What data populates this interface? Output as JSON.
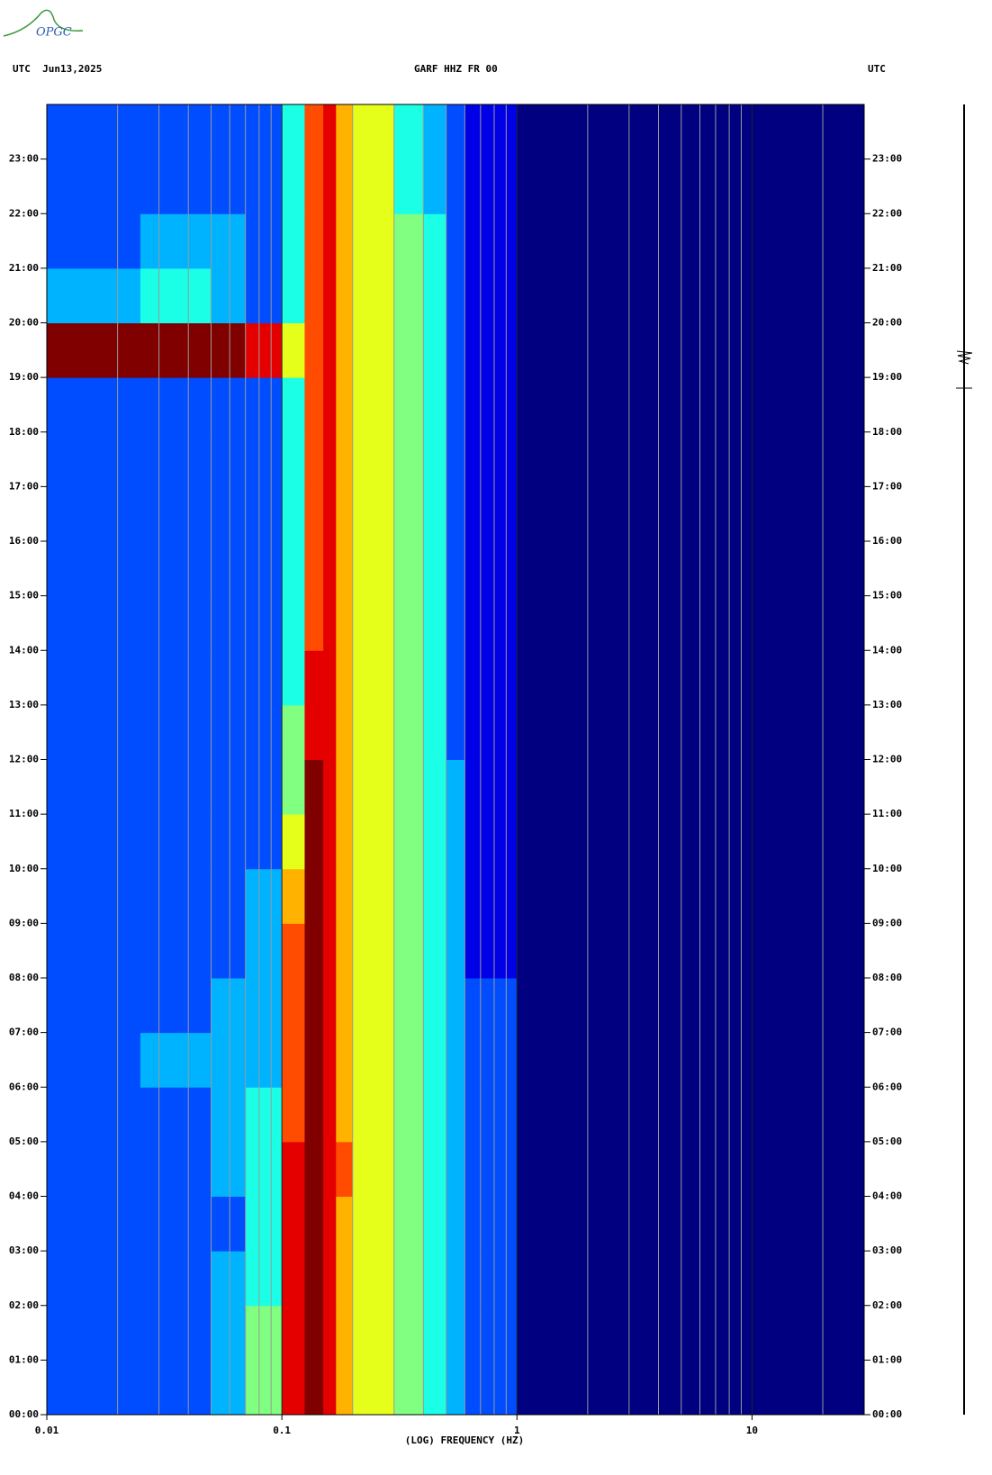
{
  "logo": "OPGC",
  "chart_data": {
    "type": "heatmap",
    "header_left": "UTC  Jun13,2025",
    "title": "GARF HHZ FR 00",
    "header_right": "UTC",
    "xlabel": "(LOG) FREQUENCY (HZ)",
    "xscale": "log",
    "xlim": [
      0.01,
      30
    ],
    "xticks": [
      0.01,
      0.1,
      1,
      10
    ],
    "xgrid": [
      0.02,
      0.03,
      0.04,
      0.05,
      0.06,
      0.07,
      0.08,
      0.09,
      0.2,
      0.3,
      0.4,
      0.5,
      0.6,
      0.7,
      0.8,
      0.9,
      2,
      3,
      4,
      5,
      6,
      7,
      8,
      9,
      20
    ],
    "ylim": [
      0,
      24
    ],
    "yticks": [
      {
        "value": 0,
        "label": "00:00"
      },
      {
        "value": 1,
        "label": "01:00"
      },
      {
        "value": 2,
        "label": "02:00"
      },
      {
        "value": 3,
        "label": "03:00"
      },
      {
        "value": 4,
        "label": "04:00"
      },
      {
        "value": 5,
        "label": "05:00"
      },
      {
        "value": 6,
        "label": "06:00"
      },
      {
        "value": 7,
        "label": "07:00"
      },
      {
        "value": 8,
        "label": "08:00"
      },
      {
        "value": 9,
        "label": "09:00"
      },
      {
        "value": 10,
        "label": "10:00"
      },
      {
        "value": 11,
        "label": "11:00"
      },
      {
        "value": 12,
        "label": "12:00"
      },
      {
        "value": 13,
        "label": "13:00"
      },
      {
        "value": 14,
        "label": "14:00"
      },
      {
        "value": 15,
        "label": "15:00"
      },
      {
        "value": 16,
        "label": "16:00"
      },
      {
        "value": 17,
        "label": "17:00"
      },
      {
        "value": 18,
        "label": "18:00"
      },
      {
        "value": 19,
        "label": "19:00"
      },
      {
        "value": 20,
        "label": "20:00"
      },
      {
        "value": 21,
        "label": "21:00"
      },
      {
        "value": 22,
        "label": "22:00"
      },
      {
        "value": 23,
        "label": "23:00"
      }
    ],
    "x_bins": [
      0.01,
      0.025,
      0.05,
      0.07,
      0.1,
      0.125,
      0.15,
      0.17,
      0.2,
      0.3,
      0.4,
      0.5,
      0.6,
      1,
      30
    ],
    "y_bins": [
      0,
      1,
      2,
      3,
      4,
      5,
      6,
      7,
      8,
      9,
      10,
      11,
      12,
      13,
      14,
      15,
      16,
      17,
      18,
      19,
      20,
      21,
      22,
      23,
      24
    ],
    "level_range": [
      0,
      10
    ],
    "values": [
      [
        2,
        2,
        3,
        5,
        9,
        10,
        9,
        7,
        6,
        5,
        4,
        3,
        2,
        0
      ],
      [
        2,
        2,
        3,
        5,
        9,
        10,
        9,
        7,
        6,
        5,
        4,
        3,
        2,
        0
      ],
      [
        2,
        2,
        3,
        4,
        9,
        10,
        9,
        7,
        6,
        5,
        4,
        3,
        2,
        0
      ],
      [
        2,
        2,
        2,
        4,
        9,
        10,
        9,
        7,
        6,
        5,
        4,
        3,
        2,
        0
      ],
      [
        2,
        2,
        3,
        4,
        9,
        10,
        9,
        8,
        6,
        5,
        4,
        3,
        2,
        0
      ],
      [
        2,
        2,
        3,
        4,
        8,
        10,
        9,
        7,
        6,
        5,
        4,
        3,
        2,
        0
      ],
      [
        2,
        3,
        3,
        3,
        8,
        10,
        9,
        7,
        6,
        5,
        4,
        3,
        2,
        0
      ],
      [
        2,
        2,
        3,
        3,
        8,
        10,
        9,
        7,
        6,
        5,
        4,
        3,
        2,
        0
      ],
      [
        2,
        2,
        2,
        3,
        8,
        10,
        9,
        7,
        6,
        5,
        4,
        3,
        1,
        0
      ],
      [
        2,
        2,
        2,
        3,
        7,
        10,
        9,
        7,
        6,
        5,
        4,
        3,
        1,
        0
      ],
      [
        2,
        2,
        2,
        2,
        6,
        10,
        9,
        7,
        6,
        5,
        4,
        3,
        1,
        0
      ],
      [
        2,
        2,
        2,
        2,
        5,
        10,
        9,
        7,
        6,
        5,
        4,
        3,
        1,
        0
      ],
      [
        2,
        2,
        2,
        2,
        5,
        9,
        9,
        7,
        6,
        5,
        4,
        2,
        1,
        0
      ],
      [
        2,
        2,
        2,
        2,
        4,
        9,
        9,
        7,
        6,
        5,
        4,
        2,
        1,
        0
      ],
      [
        2,
        2,
        2,
        2,
        4,
        8,
        9,
        7,
        6,
        5,
        4,
        2,
        1,
        0
      ],
      [
        2,
        2,
        2,
        2,
        4,
        8,
        9,
        7,
        6,
        5,
        4,
        2,
        1,
        0
      ],
      [
        2,
        2,
        2,
        2,
        4,
        8,
        9,
        7,
        6,
        5,
        4,
        2,
        1,
        0
      ],
      [
        2,
        2,
        2,
        2,
        4,
        8,
        9,
        7,
        6,
        5,
        4,
        2,
        1,
        0
      ],
      [
        2,
        2,
        2,
        2,
        4,
        8,
        9,
        7,
        6,
        5,
        4,
        2,
        1,
        0
      ],
      [
        10,
        10,
        10,
        9,
        6,
        8,
        9,
        7,
        6,
        5,
        4,
        2,
        1,
        0
      ],
      [
        3,
        4,
        3,
        2,
        4,
        8,
        9,
        7,
        6,
        5,
        4,
        2,
        1,
        0
      ],
      [
        2,
        3,
        3,
        2,
        4,
        8,
        9,
        7,
        6,
        5,
        4,
        2,
        1,
        0
      ],
      [
        2,
        2,
        2,
        2,
        4,
        8,
        9,
        7,
        6,
        4,
        3,
        2,
        1,
        0
      ],
      [
        2,
        2,
        2,
        2,
        4,
        8,
        9,
        7,
        6,
        4,
        3,
        2,
        1,
        0
      ]
    ]
  }
}
